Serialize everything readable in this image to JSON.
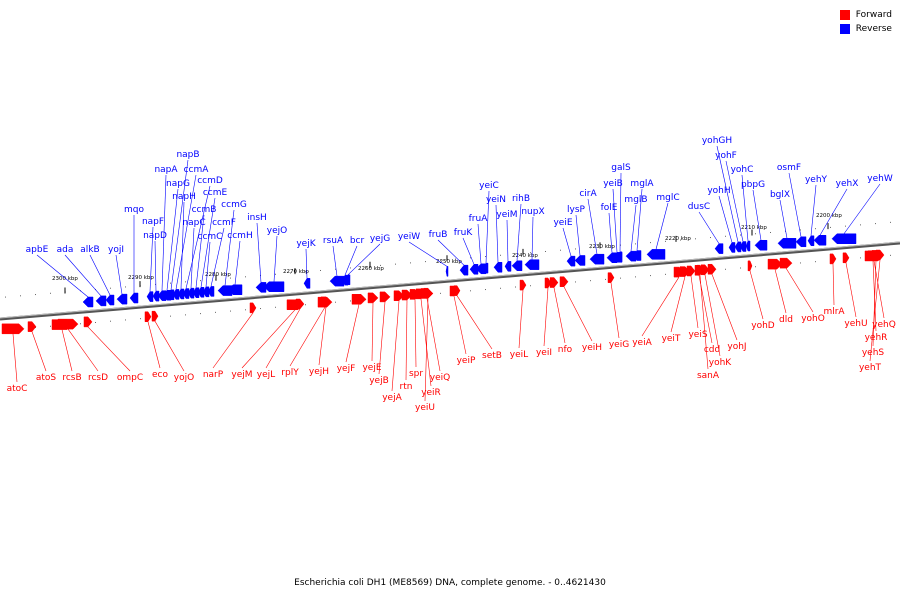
{
  "legend": [
    {
      "label": "Forward",
      "color": "#ff0000"
    },
    {
      "label": "Reverse",
      "color": "#0000ff"
    }
  ],
  "caption": "Escherichia coli DH1 (ME8569) DNA, complete genome. - 0..4621430",
  "ticks": [
    "2300 kbp",
    "2290 kbp",
    "2280 kbp",
    "2270 kbp",
    "2260 kbp",
    "2250 kbp",
    "2240 kbp",
    "2230 kbp",
    "2220 kbp",
    "2210 kbp",
    "2200 kbp"
  ],
  "reverse_genes": [
    "apbE",
    "ada",
    "alkB",
    "yojI",
    "mqo",
    "napF",
    "napD",
    "napA",
    "napG",
    "napB",
    "ccmA",
    "napH",
    "ccmD",
    "napC",
    "ccmB",
    "ccmE",
    "ccmC",
    "ccmF",
    "ccmG",
    "ccmH",
    "insH",
    "yejO",
    "yejK",
    "rsuA",
    "bcr",
    "yejG",
    "yeiW",
    "fruB",
    "fruK",
    "fruA",
    "yeiC",
    "yeiN",
    "yeiM",
    "rihB",
    "nupX",
    "yeiE",
    "lysP",
    "cirA",
    "folE",
    "yeiB",
    "galS",
    "mglB",
    "mglA",
    "mglC",
    "dusC",
    "yohH",
    "yohGH",
    "yohF",
    "yohC",
    "pbpG",
    "bglX",
    "osmF",
    "yehY",
    "yehX",
    "yehW"
  ],
  "forward_genes": [
    "atoC",
    "atoS",
    "rcsB",
    "rcsD",
    "ompC",
    "eco",
    "yojO",
    "narP",
    "yejM",
    "yejL",
    "rplY",
    "yejH",
    "yejF",
    "yejE",
    "yejB",
    "yejA",
    "rtn",
    "spr",
    "yeiR",
    "yeiQ",
    "yeiU",
    "yeiP",
    "setB",
    "yeiL",
    "yeiI",
    "nfo",
    "yeiH",
    "yeiG",
    "yeiA",
    "yeiT",
    "yeiS",
    "cdd",
    "sanA",
    "yohK",
    "yohJ",
    "yohD",
    "dld",
    "yohO",
    "mlrA",
    "yehU",
    "yehQ",
    "yehR",
    "yehS",
    "yehT"
  ]
}
